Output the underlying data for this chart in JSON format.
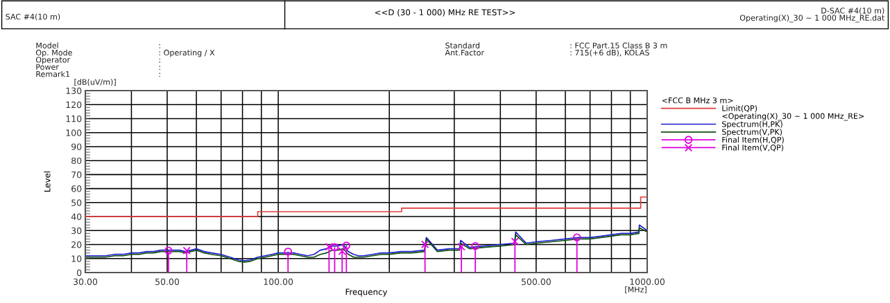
{
  "chart_data": {
    "type": "line",
    "title": "<<D (30 - 1 000) MHz RE TEST>>",
    "xlabel": "Frequency",
    "ylabel": "Level",
    "legend_title": "<FCC B MHz 3 m>",
    "annotations": [
      "SAC #4(10 m)",
      "D-SAC #4(10 m)\nOperating(X)_30 ~ 1 000 MHz_RE.dat",
      "Model\nOp. Mode\nOperator\nPower\nRemark1",
      ":\n: Operating / X\n:\n:\n:",
      "Standard\nAnt.Factor",
      ": FCC Part.15 Class B 3 m\n: 715(+6 dB), KOLAS",
      "[dB(uV/m)]",
      "[MHz]",
      "<Operating(X)_30 ~ 1 000 MHz_RE>"
    ],
    "log": "x",
    "grid": true,
    "legend": "right",
    "xlim": [
      30,
      1000
    ],
    "ylim": [
      0,
      130
    ],
    "xticks": [
      {
        "value": 30,
        "label": "30.00"
      },
      {
        "value": 40,
        "label": null
      },
      {
        "value": 50,
        "label": "50.00"
      },
      {
        "value": 60,
        "label": null
      },
      {
        "value": 70,
        "label": null
      },
      {
        "value": 80,
        "label": null
      },
      {
        "value": 90,
        "label": null
      },
      {
        "value": 100,
        "label": "100.00"
      },
      {
        "value": 200,
        "label": null
      },
      {
        "value": 300,
        "label": null
      },
      {
        "value": 400,
        "label": null
      },
      {
        "value": 500,
        "label": "500.00"
      },
      {
        "value": 600,
        "label": null
      },
      {
        "value": 700,
        "label": null
      },
      {
        "value": 800,
        "label": null
      },
      {
        "value": 900,
        "label": null
      },
      {
        "value": 1000,
        "label": "1000.00"
      }
    ],
    "yticks": [
      0,
      10,
      20,
      30,
      40,
      50,
      60,
      70,
      80,
      90,
      100,
      110,
      120,
      130
    ],
    "series": [
      {
        "name": "Limit(QP)",
        "type": "step",
        "color": "#e03c3c",
        "x": [
          30,
          88,
          216,
          960,
          1000
        ],
        "values": [
          40,
          43.5,
          46,
          54,
          54
        ]
      },
      {
        "name": "Spectrum(H,PK)",
        "color": "#1c1ccc",
        "x": [
          30,
          32,
          34,
          36,
          38,
          40,
          42,
          44,
          46,
          48,
          50,
          52,
          54,
          56,
          58,
          60,
          63,
          66,
          70,
          74,
          78,
          81,
          84,
          88,
          92,
          96,
          100,
          105,
          110,
          115,
          120,
          125,
          130,
          135,
          140,
          145,
          150,
          155,
          160,
          165,
          170,
          180,
          190,
          200,
          215,
          230,
          249,
          252,
          270,
          290,
          310,
          312,
          330,
          360,
          400,
          437,
          440,
          470,
          500,
          550,
          600,
          650,
          700,
          750,
          800,
          850,
          900,
          950,
          952,
          1000
        ],
        "values": [
          12,
          12,
          12,
          13,
          13,
          14,
          14,
          15,
          15,
          16,
          16,
          16,
          16,
          15,
          16,
          17,
          15,
          14,
          13,
          11,
          9,
          8.5,
          9,
          11,
          12,
          13,
          14,
          14,
          14,
          13,
          12,
          13,
          16,
          17,
          19,
          19,
          20,
          15,
          13,
          12,
          12,
          13,
          14,
          14,
          15,
          15,
          16,
          25,
          16,
          17,
          17,
          23,
          18,
          19,
          20,
          21,
          29,
          21,
          22,
          23,
          24,
          25,
          25,
          26,
          27,
          28,
          28,
          29,
          34,
          30
        ]
      },
      {
        "name": "Spectrum(V,PK)",
        "color": "#0b4d0b",
        "x": [
          30,
          32,
          34,
          36,
          38,
          40,
          42,
          44,
          46,
          48,
          50,
          52,
          54,
          56,
          58,
          60,
          63,
          66,
          70,
          74,
          78,
          81,
          84,
          88,
          92,
          96,
          100,
          105,
          110,
          115,
          120,
          125,
          130,
          135,
          140,
          145,
          150,
          155,
          160,
          165,
          170,
          180,
          190,
          200,
          215,
          230,
          249,
          252,
          270,
          290,
          310,
          312,
          330,
          360,
          400,
          437,
          440,
          470,
          500,
          550,
          600,
          650,
          700,
          750,
          800,
          850,
          900,
          950,
          952,
          1000
        ],
        "values": [
          11,
          11,
          11,
          12,
          12,
          13,
          13,
          14,
          14,
          15,
          15,
          15,
          15,
          14,
          15,
          16,
          14,
          13,
          12,
          10,
          8,
          7.5,
          8,
          10,
          11,
          12,
          13,
          13,
          13,
          12,
          11,
          11,
          13,
          14,
          16,
          16,
          17,
          13,
          11,
          11,
          11,
          12,
          13,
          13,
          14,
          14,
          15,
          24,
          15,
          16,
          16,
          21,
          17,
          18,
          19,
          20,
          27,
          20,
          21,
          22,
          23,
          24,
          24,
          25,
          26,
          27,
          27,
          28,
          32,
          29
        ]
      },
      {
        "name": "Final Item(H,QP)",
        "type": "lollipop",
        "marker": "circle",
        "color": "#e000e0",
        "x": [
          50.4,
          106.3,
          142.2,
          153,
          342,
          645
        ],
        "values": [
          15.7,
          15,
          18.1,
          19.3,
          18.9,
          25.1
        ]
      },
      {
        "name": "Final Item(V,QP)",
        "type": "lollipop",
        "marker": "cross",
        "color": "#e000e0",
        "x": [
          56.5,
          137.3,
          149,
          249.9,
          313.6,
          438
        ],
        "values": [
          15.7,
          18.4,
          15.2,
          20.1,
          18.4,
          22.2
        ]
      }
    ]
  }
}
